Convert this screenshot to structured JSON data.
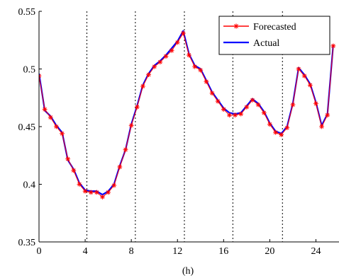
{
  "chart_data": {
    "type": "line",
    "title": "",
    "xlabel": "(h)",
    "ylabel": "",
    "xlim": [
      0,
      26
    ],
    "ylim": [
      0.35,
      0.55
    ],
    "x_ticks": [
      0,
      4,
      8,
      12,
      16,
      20,
      24
    ],
    "x_tick_labels": [
      "0",
      "4",
      "8",
      "12",
      "16",
      "20",
      "24"
    ],
    "y_ticks": [
      0.35,
      0.4,
      0.45,
      0.5,
      0.55
    ],
    "y_tick_labels": [
      "0.35",
      "0.4",
      "0.45",
      "0.5",
      "0.55"
    ],
    "vlines": [
      4.15,
      8.35,
      12.6,
      16.8,
      21.1
    ],
    "legend_position": "top-right",
    "series": [
      {
        "name": "Forecasted",
        "color": "#ff0000",
        "marker": "star",
        "x": [
          0,
          0.5,
          1,
          1.5,
          2,
          2.5,
          3,
          3.5,
          4,
          4.5,
          5,
          5.5,
          6,
          6.5,
          7,
          7.5,
          8,
          8.5,
          9,
          9.5,
          10,
          10.5,
          11,
          11.5,
          12,
          12.5,
          13,
          13.5,
          14,
          14.5,
          15,
          15.5,
          16,
          16.5,
          17,
          17.5,
          18,
          18.5,
          19,
          19.5,
          20,
          20.5,
          21,
          21.5,
          22,
          22.5,
          23,
          23.5,
          24,
          24.5,
          25,
          25.5
        ],
        "values": [
          0.494,
          0.465,
          0.458,
          0.45,
          0.444,
          0.422,
          0.412,
          0.4,
          0.394,
          0.393,
          0.393,
          0.389,
          0.393,
          0.399,
          0.415,
          0.43,
          0.451,
          0.467,
          0.485,
          0.495,
          0.502,
          0.506,
          0.511,
          0.516,
          0.523,
          0.531,
          0.512,
          0.502,
          0.499,
          0.489,
          0.479,
          0.472,
          0.465,
          0.46,
          0.46,
          0.461,
          0.467,
          0.473,
          0.469,
          0.462,
          0.452,
          0.445,
          0.443,
          0.449,
          0.469,
          0.5,
          0.494,
          0.486,
          0.47,
          0.45,
          0.46,
          0.52
        ]
      },
      {
        "name": "Actual",
        "color": "#0000ff",
        "marker": "none",
        "x": [
          0,
          0.5,
          1,
          1.5,
          2,
          2.5,
          3,
          3.5,
          4,
          4.5,
          5,
          5.5,
          6,
          6.5,
          7,
          7.5,
          8,
          8.5,
          9,
          9.5,
          10,
          10.5,
          11,
          11.5,
          12,
          12.5,
          13,
          13.5,
          14,
          14.5,
          15,
          15.5,
          16,
          16.5,
          17,
          17.5,
          18,
          18.5,
          19,
          19.5,
          20,
          20.5,
          21,
          21.5,
          22,
          22.5,
          23,
          23.5,
          24,
          24.5,
          25,
          25.5
        ],
        "values": [
          0.496,
          0.464,
          0.459,
          0.451,
          0.445,
          0.421,
          0.413,
          0.401,
          0.395,
          0.394,
          0.394,
          0.391,
          0.394,
          0.4,
          0.416,
          0.43,
          0.452,
          0.468,
          0.486,
          0.496,
          0.503,
          0.507,
          0.512,
          0.518,
          0.524,
          0.533,
          0.513,
          0.503,
          0.5,
          0.49,
          0.48,
          0.473,
          0.466,
          0.462,
          0.461,
          0.462,
          0.468,
          0.474,
          0.47,
          0.463,
          0.453,
          0.446,
          0.444,
          0.45,
          0.47,
          0.501,
          0.495,
          0.487,
          0.471,
          0.451,
          0.461,
          0.521
        ]
      }
    ]
  }
}
